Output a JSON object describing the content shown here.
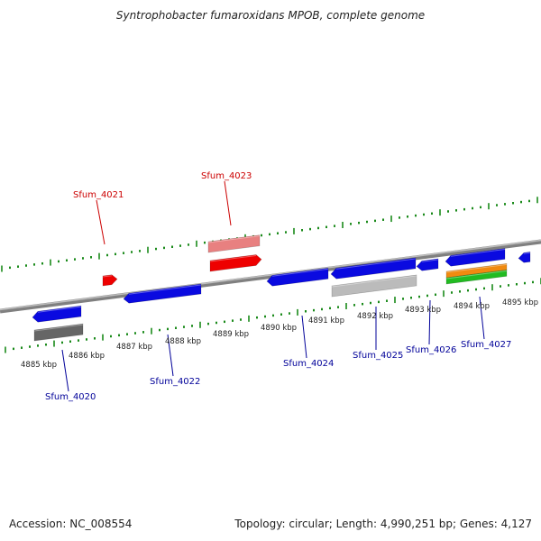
{
  "title": "Syntrophobacter fumaroxidans MPOB, complete genome",
  "footer": {
    "accession": "Accession: NC_008554",
    "info": "Topology: circular; Length: 4,990,251 bp; Genes: 4,127"
  },
  "scale_labels": [
    "4885 kbp",
    "4886 kbp",
    "4887 kbp",
    "4888 kbp",
    "4889 kbp",
    "4890 kbp",
    "4891 kbp",
    "4892 kbp",
    "4893 kbp",
    "4894 kbp",
    "4895 kbp"
  ],
  "gene_labels": [
    {
      "name": "Sfum_4021",
      "strand": "forward"
    },
    {
      "name": "Sfum_4023",
      "strand": "forward"
    },
    {
      "name": "Sfum_4020",
      "strand": "reverse"
    },
    {
      "name": "Sfum_4022",
      "strand": "reverse"
    },
    {
      "name": "Sfum_4024",
      "strand": "reverse"
    },
    {
      "name": "Sfum_4025",
      "strand": "reverse"
    },
    {
      "name": "Sfum_4026",
      "strand": "reverse"
    },
    {
      "name": "Sfum_4027",
      "strand": "reverse"
    }
  ],
  "colors": {
    "forward_label": "#cc0000",
    "reverse_label": "#000099",
    "tick": "#1a8a1a",
    "backbone": "#888888",
    "blue_feature": "#0a0ae0",
    "red_feature": "#ee0000",
    "pink_feature": "#e88080",
    "dark_gray_feature": "#666666",
    "light_gray_feature": "#bbbbbb",
    "orange_feature": "#f08a10",
    "green_feature": "#22bb22"
  }
}
